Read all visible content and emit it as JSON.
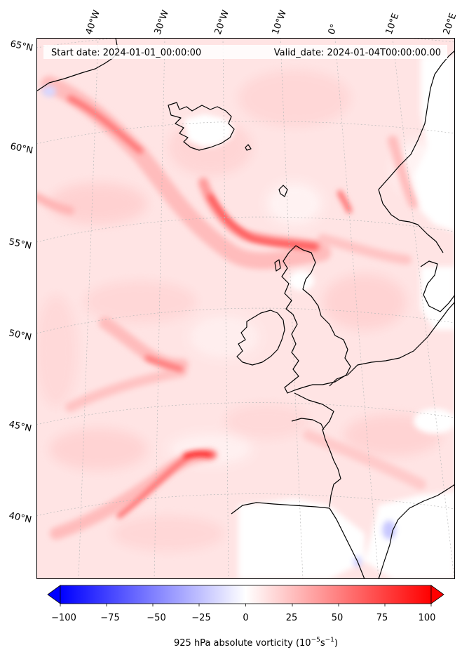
{
  "header": {
    "start_label": "Start date: 2024-01-01_00:00:00",
    "valid_label": "Valid_date: 2024-01-04T00:00:00.00"
  },
  "lon_ticks": [
    "40°W",
    "30°W",
    "20°W",
    "10°W",
    "0°",
    "10°E",
    "20°E"
  ],
  "lat_ticks": [
    "65°N",
    "60°N",
    "55°N",
    "50°N",
    "45°N",
    "40°N"
  ],
  "colorbar": {
    "ticks": [
      "−100",
      "−75",
      "−50",
      "−25",
      "0",
      "25",
      "50",
      "75",
      "100"
    ],
    "range": [
      -100,
      100
    ],
    "label_main": "925 hPa absolute vorticity (10",
    "label_exp1": "−5",
    "label_mid": "s",
    "label_exp2": "−1",
    "label_end": ")",
    "colors": {
      "min": "#0000ff",
      "mid": "#ffffff",
      "max": "#ff0000"
    }
  }
}
